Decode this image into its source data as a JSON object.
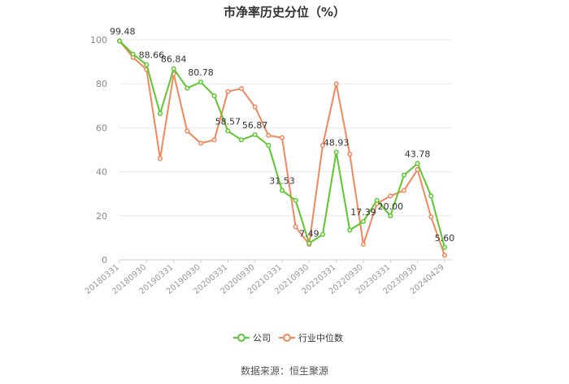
{
  "chart_data": {
    "type": "line",
    "title": "市净率历史分位（%）",
    "xlabel": "",
    "ylabel": "",
    "ylim": [
      0,
      100
    ],
    "yticks": [
      0,
      20,
      40,
      60,
      80,
      100
    ],
    "grid": true,
    "legend_position": "bottom",
    "x": [
      "20180331",
      "20180630",
      "20180930",
      "20181231",
      "20190331",
      "20190630",
      "20190930",
      "20191231",
      "20200331",
      "20200630",
      "20200930",
      "20201231",
      "20210331",
      "20210630",
      "20210930",
      "20211231",
      "20220331",
      "20220630",
      "20220930",
      "20221231",
      "20230331",
      "20230630",
      "20230930",
      "20231231",
      "20240429"
    ],
    "xtick_labels": [
      "20180331",
      "20180930",
      "20190331",
      "20190930",
      "20200331",
      "20200930",
      "20210331",
      "20210930",
      "20220331",
      "20220930",
      "20230331",
      "20230930",
      "20240429"
    ],
    "series": [
      {
        "name": "公司",
        "color": "#5cc72e",
        "values": [
          99.48,
          93.5,
          88.66,
          66.5,
          86.84,
          78.0,
          80.78,
          74.5,
          58.57,
          54.5,
          56.87,
          52.0,
          31.53,
          27.0,
          7.49,
          11.5,
          48.93,
          13.5,
          17.39,
          27.0,
          20.0,
          38.5,
          43.78,
          29.0,
          5.6
        ]
      },
      {
        "name": "行业中位数",
        "color": "#f2875b",
        "values": [
          99.5,
          92.0,
          86.5,
          46.0,
          84.5,
          58.5,
          53.0,
          54.5,
          76.5,
          77.8,
          69.5,
          56.5,
          55.5,
          15.0,
          7.0,
          52.0,
          80.0,
          48.0,
          7.0,
          25.5,
          29.0,
          31.5,
          41.0,
          19.5,
          2.0
        ]
      }
    ],
    "data_labels": [
      {
        "series": 0,
        "index": 0,
        "text": "99.48"
      },
      {
        "series": 0,
        "index": 2,
        "text": "88.66"
      },
      {
        "series": 0,
        "index": 4,
        "text": "86.84"
      },
      {
        "series": 0,
        "index": 6,
        "text": "80.78"
      },
      {
        "series": 0,
        "index": 8,
        "text": "58.57"
      },
      {
        "series": 0,
        "index": 10,
        "text": "56.87"
      },
      {
        "series": 0,
        "index": 12,
        "text": "31.53"
      },
      {
        "series": 0,
        "index": 14,
        "text": "7.49"
      },
      {
        "series": 0,
        "index": 16,
        "text": "48.93"
      },
      {
        "series": 0,
        "index": 18,
        "text": "17.39"
      },
      {
        "series": 0,
        "index": 20,
        "text": "20.00"
      },
      {
        "series": 0,
        "index": 22,
        "text": "43.78"
      },
      {
        "series": 0,
        "index": 24,
        "text": "5.60"
      }
    ]
  },
  "source_note": "数据来源：恒生聚源"
}
